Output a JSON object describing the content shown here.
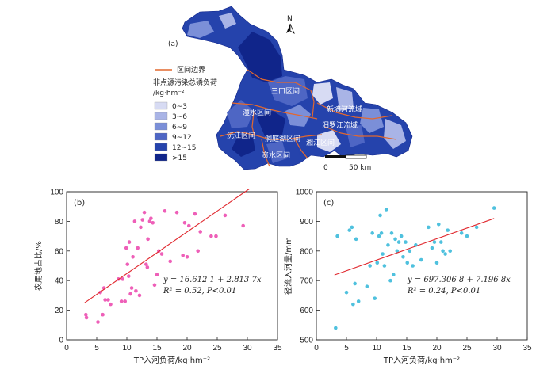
{
  "colors": {
    "boundary": "#e2682f",
    "pink": "#ee5fb8",
    "cyan": "#4fc1de",
    "fit": "#e0282e",
    "legend": [
      "#d7dbf3",
      "#a9b4e6",
      "#7b8fd8",
      "#4e66c4",
      "#2543ac",
      "#10258a"
    ]
  },
  "map": {
    "panel_label": "(a)",
    "north": "N",
    "legend_boundary_label": "区间边界",
    "legend_title": "非点源污染总磷负荷",
    "legend_unit": "/kg·hm⁻²",
    "legend_items": [
      "0~3",
      "3~6",
      "6~9",
      "9~12",
      "12~15",
      ">15"
    ],
    "scale_0": "0",
    "scale_50": "50 km",
    "regions": [
      "三口区间",
      "新墙河流域",
      "澧水区间",
      "汨罗江流域",
      "沅江区间",
      "洞庭湖区间",
      "湘江区间",
      "资水区间"
    ]
  },
  "chart_data": [
    {
      "type": "scatter",
      "panel_label": "(b)",
      "title": "",
      "xlabel": "TP入河负荷/kg·hm⁻²",
      "ylabel": "农用地占比/%",
      "xlim": [
        0,
        35
      ],
      "ylim": [
        0,
        100
      ],
      "xticks": [
        0,
        5,
        10,
        15,
        20,
        25,
        30,
        35
      ],
      "yticks": [
        0,
        20,
        40,
        60,
        80,
        100
      ],
      "grid": false,
      "equation": "y = 16.612 1 + 2.813 7x",
      "r2": "R² = 0.52, P<0.01",
      "fit": {
        "intercept": 16.6121,
        "slope": 2.8137,
        "x_range": [
          3,
          30.3
        ]
      },
      "points": [
        [
          3.2,
          17
        ],
        [
          3.3,
          15
        ],
        [
          5.2,
          12
        ],
        [
          5.6,
          32
        ],
        [
          6.0,
          17
        ],
        [
          6.2,
          35
        ],
        [
          6.4,
          27
        ],
        [
          6.9,
          27
        ],
        [
          7.3,
          24
        ],
        [
          8.6,
          41
        ],
        [
          9.1,
          26
        ],
        [
          9.3,
          41
        ],
        [
          9.7,
          26
        ],
        [
          9.9,
          62
        ],
        [
          10.1,
          51
        ],
        [
          10.3,
          43
        ],
        [
          10.4,
          66
        ],
        [
          10.6,
          31
        ],
        [
          10.8,
          35
        ],
        [
          11.0,
          56
        ],
        [
          11.3,
          80
        ],
        [
          11.5,
          33
        ],
        [
          11.8,
          62
        ],
        [
          12.1,
          30
        ],
        [
          12.3,
          76
        ],
        [
          12.6,
          81
        ],
        [
          12.9,
          86
        ],
        [
          13.2,
          51
        ],
        [
          13.4,
          49
        ],
        [
          13.5,
          68
        ],
        [
          13.8,
          80
        ],
        [
          14.0,
          82
        ],
        [
          14.3,
          79
        ],
        [
          14.6,
          37
        ],
        [
          15.0,
          44
        ],
        [
          15.3,
          60
        ],
        [
          15.8,
          58
        ],
        [
          16.3,
          87
        ],
        [
          17.2,
          53
        ],
        [
          18.3,
          86
        ],
        [
          19.3,
          57
        ],
        [
          19.6,
          79
        ],
        [
          20.0,
          56
        ],
        [
          20.3,
          77
        ],
        [
          21.3,
          85
        ],
        [
          21.8,
          60
        ],
        [
          22.2,
          73
        ],
        [
          24.0,
          70
        ],
        [
          24.8,
          70
        ],
        [
          26.3,
          84
        ],
        [
          29.3,
          77
        ]
      ]
    },
    {
      "type": "scatter",
      "panel_label": "(c)",
      "title": "",
      "xlabel": "TP入河负荷/kg·hm⁻²",
      "ylabel": "径流入河量/mm",
      "xlim": [
        0,
        35
      ],
      "ylim": [
        500,
        1000
      ],
      "xticks": [
        0,
        5,
        10,
        15,
        20,
        25,
        30,
        35
      ],
      "yticks": [
        500,
        600,
        700,
        800,
        900,
        1000
      ],
      "grid": false,
      "equation": "y = 697.306 8 + 7.196 8x",
      "r2": "R² = 0.24, P<0.01",
      "fit": {
        "intercept": 697.3068,
        "slope": 7.1968,
        "x_range": [
          3,
          29.5
        ]
      },
      "points": [
        [
          3.2,
          540
        ],
        [
          3.5,
          850
        ],
        [
          5.0,
          660
        ],
        [
          5.5,
          870
        ],
        [
          5.9,
          880
        ],
        [
          6.1,
          620
        ],
        [
          6.4,
          690
        ],
        [
          6.6,
          840
        ],
        [
          7.0,
          630
        ],
        [
          8.4,
          680
        ],
        [
          8.9,
          750
        ],
        [
          9.3,
          860
        ],
        [
          9.7,
          640
        ],
        [
          10.1,
          760
        ],
        [
          10.4,
          850
        ],
        [
          10.6,
          920
        ],
        [
          10.8,
          860
        ],
        [
          11.0,
          790
        ],
        [
          11.3,
          750
        ],
        [
          11.6,
          940
        ],
        [
          11.9,
          820
        ],
        [
          12.3,
          700
        ],
        [
          12.5,
          860
        ],
        [
          12.8,
          720
        ],
        [
          13.1,
          840
        ],
        [
          13.4,
          800
        ],
        [
          13.7,
          830
        ],
        [
          14.1,
          850
        ],
        [
          14.4,
          780
        ],
        [
          14.8,
          830
        ],
        [
          15.1,
          760
        ],
        [
          15.5,
          800
        ],
        [
          16.0,
          750
        ],
        [
          16.5,
          820
        ],
        [
          17.4,
          770
        ],
        [
          18.6,
          880
        ],
        [
          19.2,
          810
        ],
        [
          19.6,
          830
        ],
        [
          20.0,
          760
        ],
        [
          20.3,
          890
        ],
        [
          20.7,
          830
        ],
        [
          21.0,
          800
        ],
        [
          21.4,
          790
        ],
        [
          21.8,
          870
        ],
        [
          22.2,
          800
        ],
        [
          24.1,
          860
        ],
        [
          25.0,
          850
        ],
        [
          26.6,
          880
        ],
        [
          29.5,
          945
        ]
      ]
    }
  ]
}
